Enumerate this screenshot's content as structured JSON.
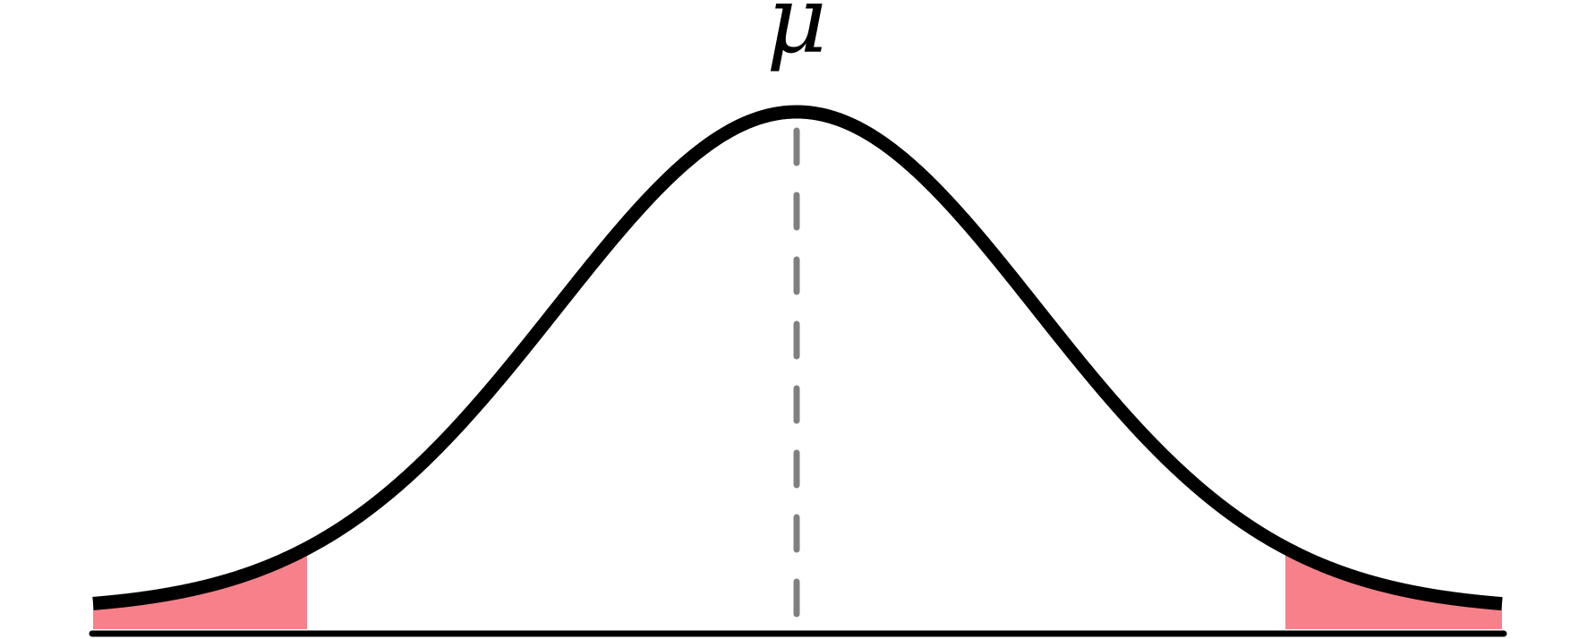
{
  "diagram": {
    "type": "normal-distribution",
    "mean_label": "μ",
    "curve_color": "#000000",
    "axis_color": "#000000",
    "mean_line_color": "#808080",
    "tail_fill_color": "#f7818a",
    "tails": [
      "left",
      "right"
    ]
  }
}
